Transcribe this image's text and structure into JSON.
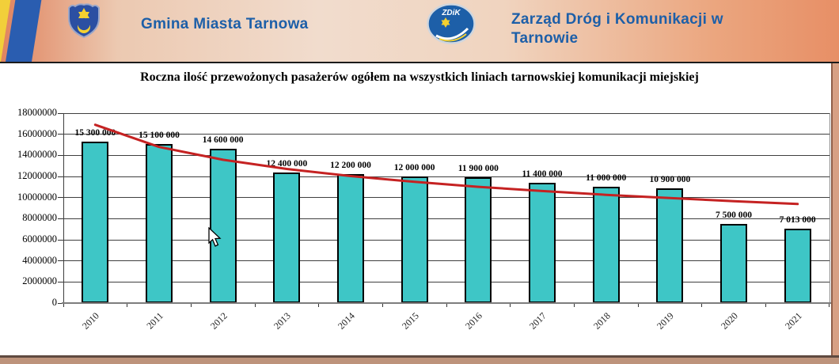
{
  "header": {
    "left": {
      "org_name": "Gmina Miasta Tarnowa"
    },
    "right": {
      "org_name": "Zarząd Dróg i Komunikacji w Tarnowie",
      "logo_text": "ZDiK"
    },
    "colors": {
      "text_blue": "#1d5fa8",
      "stripe_yellow": "#f2cf3a",
      "stripe_blue": "#2a5db0"
    }
  },
  "chart_data": {
    "type": "bar",
    "title": "Roczna ilość przewożonych pasażerów ogółem na wszystkich liniach tarnowskiej komunikacji miejskiej",
    "categories": [
      "2010",
      "2011",
      "2012",
      "2013",
      "2014",
      "2015",
      "2016",
      "2017",
      "2018",
      "2019",
      "2020",
      "2021"
    ],
    "values": [
      15300000,
      15100000,
      14600000,
      12400000,
      12200000,
      12000000,
      11900000,
      11400000,
      11000000,
      10900000,
      7500000,
      7013000
    ],
    "value_labels": [
      "15 300 000",
      "15 100 000",
      "14 600 000",
      "12 400 000",
      "12 200 000",
      "12 000 000",
      "11 900 000",
      "11 400 000",
      "11 000 000",
      "10 900 000",
      "7 500 000",
      "7 013 000"
    ],
    "xlabel": "",
    "ylabel": "",
    "ylim": [
      0,
      18000000
    ],
    "y_tick_values": [
      0,
      2000000,
      4000000,
      6000000,
      8000000,
      10000000,
      12000000,
      14000000,
      16000000,
      18000000
    ],
    "y_tick_labels": [
      "0",
      "2000000",
      "4000000",
      "6000000",
      "8000000",
      "10000000",
      "12000000",
      "14000000",
      "16000000",
      "18000000"
    ],
    "grid": true,
    "legend": "none",
    "bar_color": "#3ec6c6",
    "trend": {
      "type": "logarithmic",
      "color": "#c52222",
      "values": [
        16900000,
        14800000,
        13580000,
        12710000,
        12040000,
        11490000,
        11020000,
        10620000,
        10260000,
        9950000,
        9660000,
        9390000
      ]
    }
  }
}
